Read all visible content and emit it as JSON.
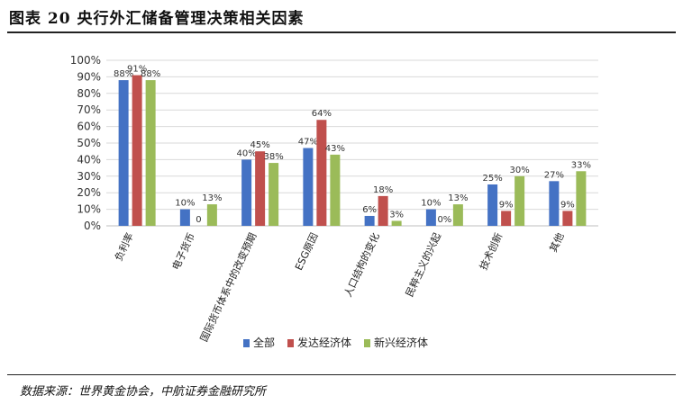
{
  "title": "图表 20 央行外汇储备管理决策相关因素",
  "source": "数据来源：世界黄金协会，中航证券金融研究所",
  "chart_data": {
    "type": "bar",
    "categories": [
      "负利率",
      "电子货币",
      "国际货币体系中的改变预期",
      "ESG原因",
      "人口结构的变化",
      "民粹主义的兴起",
      "技术创新",
      "其他"
    ],
    "series": [
      {
        "name": "全部",
        "color": "#4472c4",
        "values": [
          88,
          10,
          40,
          47,
          6,
          10,
          25,
          27
        ],
        "labels": [
          "88%",
          "10%",
          "40%",
          "47%",
          "6%",
          "10%",
          "25%",
          "27%"
        ]
      },
      {
        "name": "发达经济体",
        "color": "#c0504d",
        "values": [
          91,
          0,
          45,
          64,
          18,
          0,
          9,
          9
        ],
        "labels": [
          "91%",
          "0",
          "45%",
          "64%",
          "18%",
          "0%",
          "9%",
          "9%"
        ]
      },
      {
        "name": "新兴经济体",
        "color": "#9bbb59",
        "values": [
          88,
          13,
          38,
          43,
          3,
          13,
          30,
          33
        ],
        "labels": [
          "88%",
          "13%",
          "38%",
          "43%",
          "3%",
          "13%",
          "30%",
          "33%"
        ]
      }
    ],
    "yticks": [
      "0%",
      "10%",
      "20%",
      "30%",
      "40%",
      "50%",
      "60%",
      "70%",
      "80%",
      "90%",
      "100%"
    ],
    "ylim": [
      0,
      100
    ],
    "grid": true,
    "legend_position": "bottom"
  }
}
